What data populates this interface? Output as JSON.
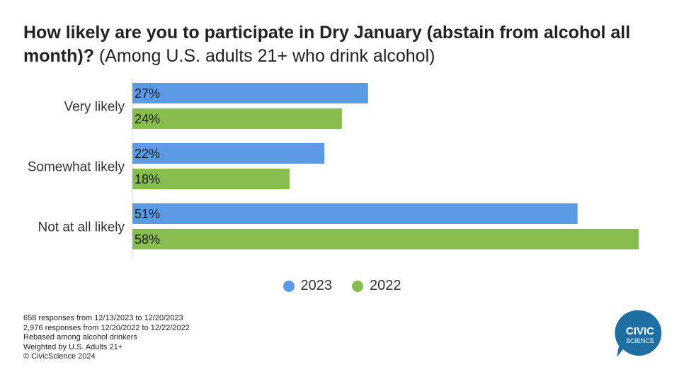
{
  "title": {
    "bold": "How likely are you to participate in Dry January (abstain from alcohol all month)?",
    "regular": "(Among U.S. adults 21+ who drink alcohol)"
  },
  "chart_data": {
    "type": "bar",
    "orientation": "horizontal",
    "categories": [
      "Very likely",
      "Somewhat likely",
      "Not at all likely"
    ],
    "series": [
      {
        "name": "2023",
        "color": "#5B9BE6",
        "values": [
          27,
          22,
          51
        ],
        "labels": [
          "27%",
          "22%",
          "51%"
        ]
      },
      {
        "name": "2022",
        "color": "#86BD4E",
        "values": [
          24,
          18,
          58
        ],
        "labels": [
          "24%",
          "18%",
          "58%"
        ]
      }
    ],
    "xlim": [
      0,
      58
    ],
    "grid": false,
    "legend_position": "bottom"
  },
  "footnotes": [
    "658 responses from 12/13/2023 to 12/20/2023",
    "2,976 responses from 12/20/2022 to 12/22/2022",
    "Rebased among alcohol drinkers",
    "Weighted by U.S. Adults 21+",
    "© CivicScience 2024"
  ],
  "logo": {
    "line1": "CIVIC",
    "line2": "SCIENCE",
    "color": "#1F6FA3"
  }
}
